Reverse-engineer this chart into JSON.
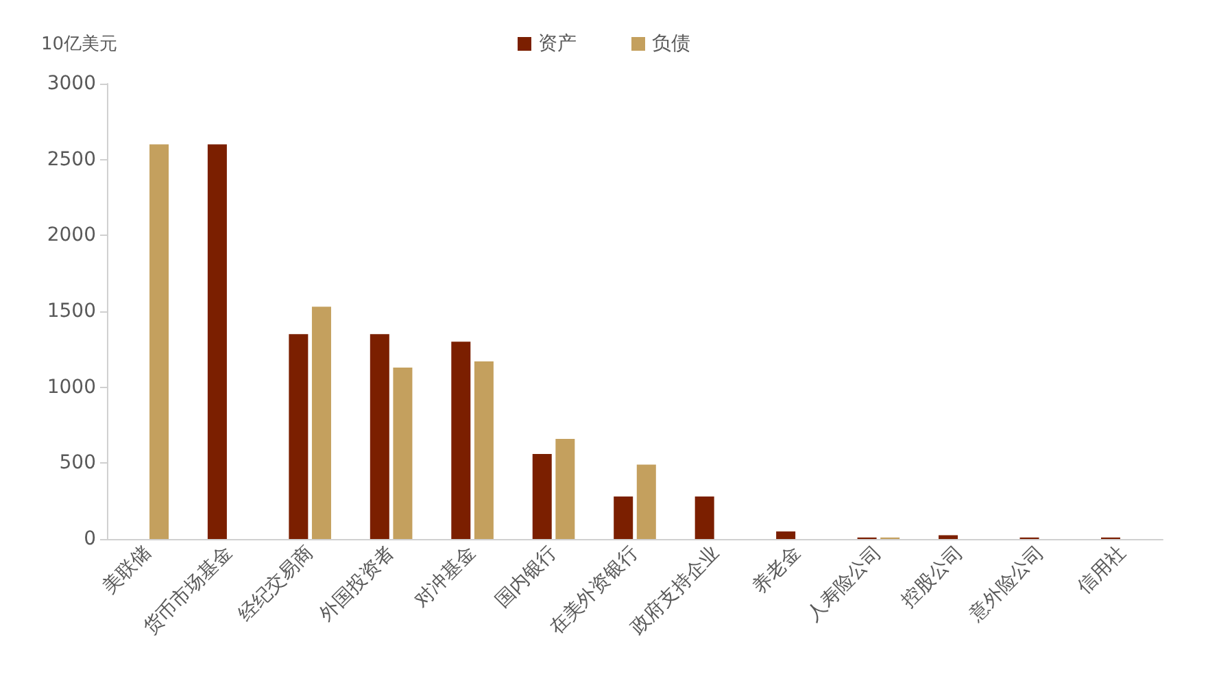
{
  "chart_data": {
    "type": "bar",
    "ylabel": "10亿美元",
    "categories": [
      "美联储",
      "货币市场基金",
      "经纪交易商",
      "外国投资者",
      "对冲基金",
      "国内银行",
      "在美外资银行",
      "政府支持企业",
      "养老金",
      "人寿险公司",
      "控股公司",
      "意外险公司",
      "信用社"
    ],
    "series": [
      {
        "name": "资产",
        "color": "#7b1f00",
        "values": [
          null,
          2600,
          1350,
          1350,
          1300,
          560,
          280,
          280,
          50,
          10,
          25,
          10,
          10
        ]
      },
      {
        "name": "负债",
        "color": "#c4a05e",
        "values": [
          2600,
          null,
          1530,
          1130,
          1170,
          660,
          490,
          null,
          null,
          10,
          null,
          null,
          null
        ]
      }
    ],
    "ylim": [
      0,
      3000
    ],
    "yticks": [
      0,
      500,
      1000,
      1500,
      2000,
      2500,
      3000
    ],
    "grid": false,
    "legend": "top"
  }
}
